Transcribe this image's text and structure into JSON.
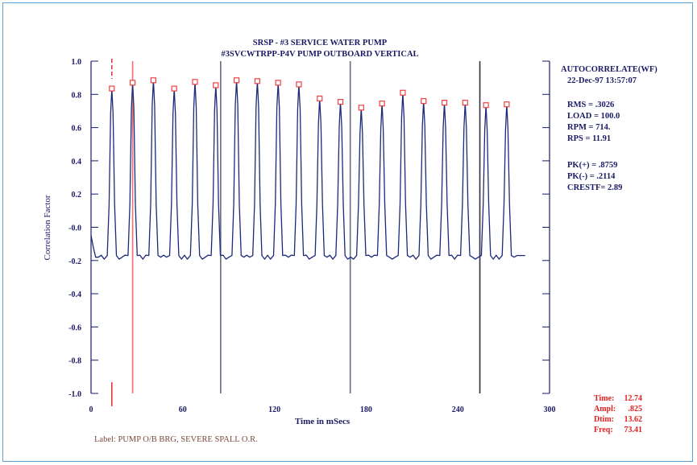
{
  "chart_data": {
    "type": "line",
    "title": "SRSP - #3 SERVICE WATER PUMP",
    "subtitle": "#3SVCWTRPP-P4V   PUMP OUTBOARD VERTICAL",
    "xlabel": "Time in mSecs",
    "ylabel": "Correlation Factor",
    "xlim": [
      0,
      300
    ],
    "ylim": [
      -1.0,
      1.0
    ],
    "x_ticks": [
      0,
      60,
      120,
      180,
      240,
      300
    ],
    "x_tick_labels": [
      "0",
      "60",
      "120",
      "180",
      "240",
      "300"
    ],
    "y_ticks": [
      1.0,
      0.8,
      0.6,
      0.4,
      0.2,
      0.0,
      -0.2,
      -0.4,
      -0.6,
      -0.8,
      -1.0
    ],
    "y_tick_labels": [
      "1.0",
      "0.8",
      "0.6",
      "0.4",
      "0.2",
      "-0.0",
      "-0.2",
      "-0.4",
      "-0.6",
      "-0.8",
      "-1.0"
    ],
    "grid": false,
    "series": [
      {
        "color": "#1c2a7a",
        "baseline": -0.18,
        "x_end": 284,
        "peaks": [
          {
            "x": 13.6,
            "y": 0.835
          },
          {
            "x": 27.2,
            "y": 0.87
          },
          {
            "x": 40.8,
            "y": 0.885
          },
          {
            "x": 54.4,
            "y": 0.835
          },
          {
            "x": 68.0,
            "y": 0.875
          },
          {
            "x": 81.6,
            "y": 0.855
          },
          {
            "x": 95.2,
            "y": 0.885
          },
          {
            "x": 108.8,
            "y": 0.88
          },
          {
            "x": 122.4,
            "y": 0.87
          },
          {
            "x": 136.0,
            "y": 0.86
          },
          {
            "x": 149.6,
            "y": 0.775
          },
          {
            "x": 163.2,
            "y": 0.755
          },
          {
            "x": 176.8,
            "y": 0.72
          },
          {
            "x": 190.4,
            "y": 0.745
          },
          {
            "x": 204.0,
            "y": 0.81
          },
          {
            "x": 217.6,
            "y": 0.76
          },
          {
            "x": 231.2,
            "y": 0.75
          },
          {
            "x": 244.8,
            "y": 0.75
          },
          {
            "x": 258.4,
            "y": 0.735
          },
          {
            "x": 272.0,
            "y": 0.74
          }
        ]
      }
    ],
    "cursors": [
      {
        "x": 13.6,
        "color": "#e02020",
        "style": "dashed"
      },
      {
        "x": 27.2,
        "color": "#f07070",
        "style": "solid"
      },
      {
        "x": 84.8,
        "color": "#6a6a80",
        "style": "solid"
      },
      {
        "x": 169.6,
        "color": "#6a6a80",
        "style": "solid"
      },
      {
        "x": 254.4,
        "color": "#303040",
        "style": "solid"
      }
    ],
    "info_panel": {
      "header": [
        "AUTOCORRELATE(WF)",
        "22-Dec-97  13:57:07"
      ],
      "stats": [
        "RMS  =  .3026",
        "LOAD = 100.0",
        "RPM  =  714.",
        "RPS  = 11.91"
      ],
      "peaks": [
        "PK(+) = .8759",
        "PK(-) = .2114",
        "CRESTF= 2.89"
      ]
    },
    "cursor_readout": [
      {
        "label": "Time:",
        "value": "12.74"
      },
      {
        "label": "Ampl:",
        "value": ".825"
      },
      {
        "label": "Dtim:",
        "value": "13.62"
      },
      {
        "label": "Freq:",
        "value": "73.41"
      }
    ],
    "label_text": "Label:  PUMP O/B BRG, SEVERE SPALL O.R."
  }
}
